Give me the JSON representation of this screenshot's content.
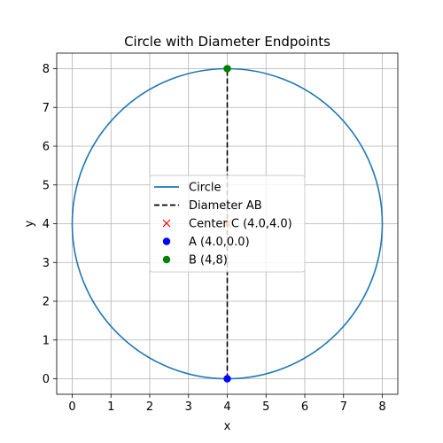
{
  "chart_data": {
    "type": "line",
    "title": "Circle with Diameter Endpoints",
    "xlabel": "x",
    "ylabel": "y",
    "xlim": [
      -0.4,
      8.4
    ],
    "ylim": [
      -0.4,
      8.4
    ],
    "xticks": [
      0,
      1,
      2,
      3,
      4,
      5,
      6,
      7,
      8
    ],
    "yticks": [
      0,
      1,
      2,
      3,
      4,
      5,
      6,
      7,
      8
    ],
    "grid": true,
    "legend_position": "center",
    "circle": {
      "center": [
        4.0,
        4.0
      ],
      "radius": 4.0,
      "color": "#1f77b4"
    },
    "diameter": {
      "from": [
        4.0,
        0.0
      ],
      "to": [
        4.0,
        8.0
      ],
      "color": "#000000",
      "style": "dashed"
    },
    "points": [
      {
        "label": "Center C (4.0,4.0)",
        "x": 4.0,
        "y": 4.0,
        "marker": "x",
        "color": "#ff0000"
      },
      {
        "label": "A (4.0,0.0)",
        "x": 4.0,
        "y": 0.0,
        "marker": "circle",
        "color": "#0000ff"
      },
      {
        "label": "B (4,8)",
        "x": 4.0,
        "y": 8.0,
        "marker": "circle",
        "color": "#008000"
      }
    ],
    "legend": [
      {
        "label": "Circle",
        "kind": "line",
        "color": "#1f77b4"
      },
      {
        "label": "Diameter AB",
        "kind": "dashed",
        "color": "#000000"
      },
      {
        "label": "Center C (4.0,4.0)",
        "kind": "x",
        "color": "#ff0000"
      },
      {
        "label": "A (4.0,0.0)",
        "kind": "dot",
        "color": "#0000ff"
      },
      {
        "label": "B (4,8)",
        "kind": "dot",
        "color": "#008000"
      }
    ]
  }
}
